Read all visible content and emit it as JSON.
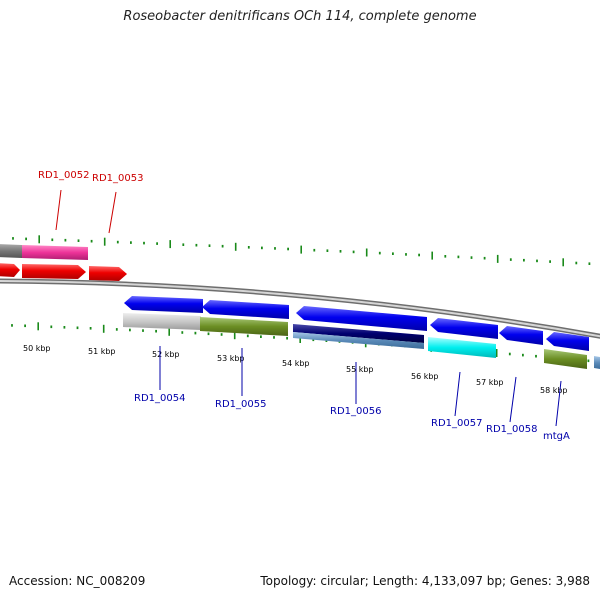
{
  "title": "Roseobacter denitrificans OCh 114, complete genome",
  "footer": {
    "accession": "Accession: NC_008209",
    "summary": "Topology: circular; Length: 4,133,097 bp; Genes: 3,988"
  },
  "colors": {
    "backbone": "#8c8c8c",
    "tick": "#1a8a1a",
    "label_top": "#cc0000",
    "label_bottom": "#0000aa"
  },
  "scale_labels": [
    "50 kbp",
    "51 kbp",
    "52 kbp",
    "53 kbp",
    "54 kbp",
    "55 kbp",
    "56 kbp",
    "57 kbp",
    "58 kbp"
  ],
  "gene_labels_top": [
    "RD1_0052",
    "RD1_0053"
  ],
  "gene_labels_bottom": [
    "RD1_0054",
    "RD1_0055",
    "RD1_0056",
    "RD1_0057",
    "RD1_0058",
    "mtgA"
  ],
  "feature_colors": {
    "red": "#ee0000",
    "magenta": "#ee3399",
    "blue": "#0000ee",
    "gray": "#c8c8c8",
    "olive": "#6b8e23",
    "navy": "#000070",
    "steel": "#5a8ab8",
    "cyan": "#00eeee",
    "dark_gray": "#777777"
  }
}
